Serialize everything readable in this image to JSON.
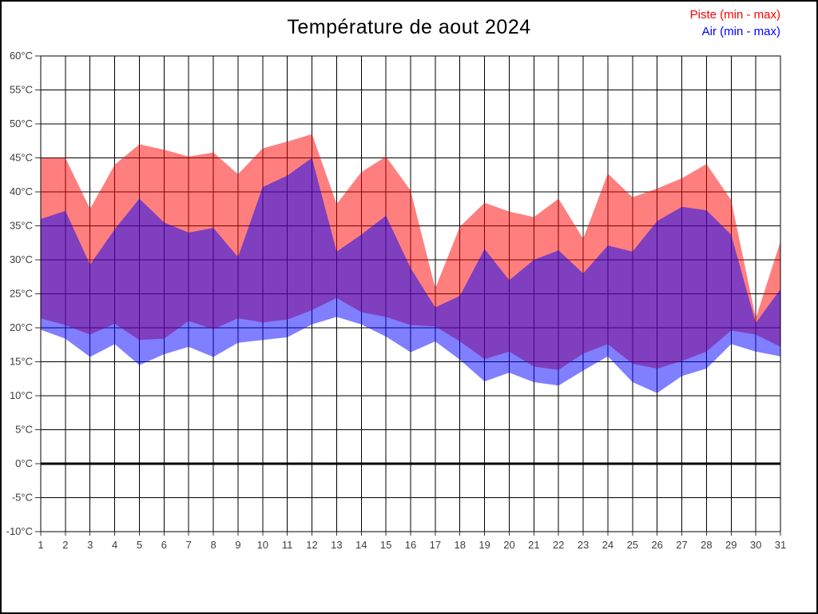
{
  "chart_data": {
    "type": "area",
    "title": "Température de aout 2024",
    "x": [
      1,
      2,
      3,
      4,
      5,
      6,
      7,
      8,
      9,
      10,
      11,
      12,
      13,
      14,
      15,
      16,
      17,
      18,
      19,
      20,
      21,
      22,
      23,
      24,
      25,
      26,
      27,
      28,
      29,
      30,
      31
    ],
    "x_tick_labels": [
      "1",
      "2",
      "3",
      "4",
      "5",
      "6",
      "7",
      "8",
      "9",
      "10",
      "11",
      "12",
      "13",
      "14",
      "15",
      "16",
      "17",
      "18",
      "19",
      "20",
      "21",
      "22",
      "23",
      "24",
      "25",
      "26",
      "27",
      "28",
      "29",
      "30",
      "31"
    ],
    "series": [
      {
        "name": "Piste (min - max)",
        "color": "#FF0000",
        "fill_opacity": 0.5,
        "max": [
          45,
          45,
          37.5,
          44,
          47,
          46.2,
          45.2,
          45.8,
          42.6,
          46.4,
          47.4,
          48.5,
          38.2,
          42.9,
          45.2,
          40.2,
          25.8,
          34.9,
          38.4,
          37.1,
          36.3,
          39,
          33.1,
          42.7,
          39.2,
          40.5,
          42,
          44.1,
          38.8,
          21.4,
          32.7
        ],
        "min": [
          21.4,
          20.4,
          19,
          20.6,
          18.2,
          18.4,
          21,
          19.8,
          21.4,
          20.8,
          21.2,
          22.6,
          24.4,
          22.3,
          21.6,
          20.4,
          20.2,
          18,
          15.4,
          16.5,
          14.3,
          13.8,
          16.2,
          17.6,
          14.7,
          14,
          15.1,
          16.5,
          19.6,
          19,
          17.2
        ]
      },
      {
        "name": "Air (min - max)",
        "color": "#0000FF",
        "fill_opacity": 0.5,
        "max": [
          36,
          37.2,
          29.3,
          34.5,
          39,
          35.5,
          34,
          34.7,
          30.4,
          40.7,
          42.4,
          45,
          31.2,
          33.7,
          36.5,
          28.8,
          23,
          24.7,
          31.6,
          27,
          30,
          31.4,
          28,
          32.1,
          31.2,
          35.7,
          37.8,
          37.3,
          33.7,
          20.7,
          25.7
        ],
        "min": [
          19.7,
          18.4,
          15.7,
          17.6,
          14.5,
          16.1,
          17.2,
          15.7,
          17.8,
          18.2,
          18.6,
          20.5,
          21.6,
          20.5,
          18.7,
          16.4,
          18,
          15.3,
          12.1,
          13.4,
          12,
          11.5,
          13.7,
          15.8,
          12,
          10.4,
          12.9,
          14,
          17.6,
          16.5,
          15.8
        ]
      }
    ],
    "ylim": [
      -10,
      60
    ],
    "y_unit": "°C",
    "y_tick_values": [
      60,
      55,
      50,
      45,
      40,
      35,
      30,
      25,
      20,
      15,
      10,
      5,
      0,
      -5,
      -10
    ],
    "y_tick_labels": [
      "60°C",
      "55°C",
      "50°C",
      "45°C",
      "40°C",
      "35°C",
      "30°C",
      "25°C",
      "20°C",
      "15°C",
      "10°C",
      "5°C",
      "0°C",
      "-5°C",
      "-10°C"
    ],
    "grid": true,
    "zero_line": true,
    "legend_position": "top-right",
    "grid_color": "#000000",
    "tick_label_color": "#3d3d3d"
  }
}
